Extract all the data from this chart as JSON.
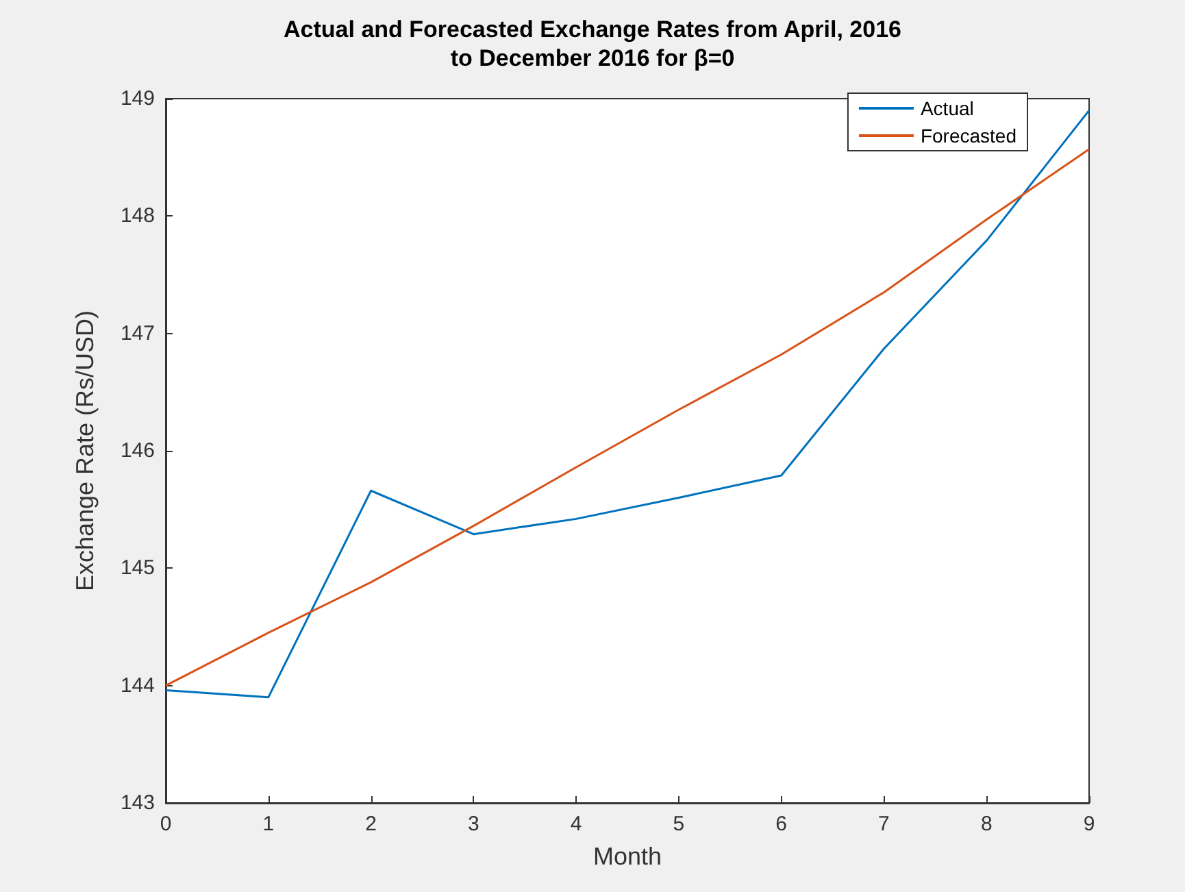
{
  "chart_data": {
    "type": "line",
    "title": "Actual and Forecasted Exchange Rates from April, 2016\nto December 2016 for β=0",
    "xlabel": "Month",
    "ylabel": "Exchange Rate (Rs/USD)",
    "x": [
      0,
      1,
      2,
      3,
      4,
      5,
      6,
      7,
      8,
      9
    ],
    "series": [
      {
        "name": "Actual",
        "color": "#0072bd",
        "values": [
          143.96,
          143.9,
          145.66,
          145.29,
          145.42,
          145.6,
          145.79,
          146.87,
          147.79,
          148.9
        ]
      },
      {
        "name": "Forecasted",
        "color": "#d95319",
        "values": [
          144.0,
          144.45,
          144.88,
          145.36,
          145.86,
          146.35,
          146.82,
          147.35,
          147.97,
          148.57
        ]
      }
    ],
    "xlim": [
      0,
      9
    ],
    "xticks": [
      0,
      1,
      2,
      3,
      4,
      5,
      6,
      7,
      8,
      9
    ],
    "ylim": [
      143,
      149
    ],
    "yticks": [
      143,
      144,
      145,
      146,
      147,
      148,
      149
    ],
    "grid": false,
    "legend": "top right",
    "marker": "none",
    "line_style": "solid"
  }
}
